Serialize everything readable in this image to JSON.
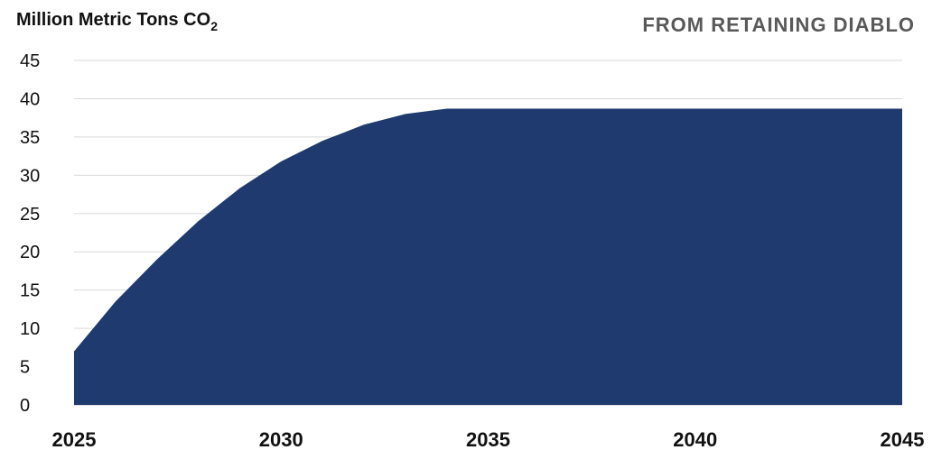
{
  "chart_data": {
    "type": "area",
    "title": "FROM RETAINING DIABLO",
    "ylabel": "Million Metric Tons CO",
    "ylabel_subscript": "2",
    "xlabel": "",
    "x": [
      2025,
      2026,
      2027,
      2028,
      2029,
      2030,
      2031,
      2032,
      2033,
      2034,
      2035,
      2036,
      2037,
      2038,
      2039,
      2040,
      2041,
      2042,
      2043,
      2044,
      2045
    ],
    "values": [
      7,
      13.5,
      19,
      24,
      28.3,
      31.8,
      34.5,
      36.6,
      38.0,
      38.7,
      38.7,
      38.7,
      38.7,
      38.7,
      38.7,
      38.7,
      38.7,
      38.7,
      38.7,
      38.7,
      38.7
    ],
    "xticks": [
      "2025",
      "2030",
      "2035",
      "2040",
      "2045"
    ],
    "yticks": [
      "0",
      "5",
      "10",
      "15",
      "20",
      "25",
      "30",
      "35",
      "40",
      "45"
    ],
    "ylim": [
      0,
      45
    ],
    "xlim": [
      2025,
      2045
    ],
    "grid": true,
    "legend": "none",
    "colors": {
      "area": "#1e3a6e",
      "title": "#595959",
      "grid": "#d9d9d9",
      "baseline": "#bfbfbf"
    }
  }
}
